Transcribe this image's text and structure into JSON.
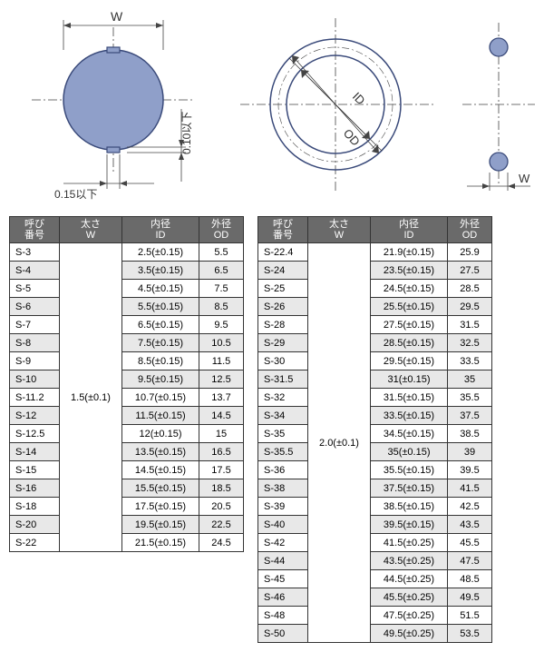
{
  "diagram": {
    "labels": {
      "W": "W",
      "W2": "W",
      "ID": "ID",
      "OD": "OD",
      "tol1": "0.15以下",
      "tol2": "0.10以下"
    },
    "colors": {
      "fill": "#8f9fc9",
      "stroke": "#3a4a7a",
      "line": "#444"
    }
  },
  "headers": [
    "呼び\n番号",
    "太さ\nW",
    "内径\nID",
    "外径\nOD"
  ],
  "table1": {
    "thickness": "1.5(±0.1)",
    "rows": [
      [
        "S-3",
        "2.5(±0.15)",
        "5.5"
      ],
      [
        "S-4",
        "3.5(±0.15)",
        "6.5"
      ],
      [
        "S-5",
        "4.5(±0.15)",
        "7.5"
      ],
      [
        "S-6",
        "5.5(±0.15)",
        "8.5"
      ],
      [
        "S-7",
        "6.5(±0.15)",
        "9.5"
      ],
      [
        "S-8",
        "7.5(±0.15)",
        "10.5"
      ],
      [
        "S-9",
        "8.5(±0.15)",
        "11.5"
      ],
      [
        "S-10",
        "9.5(±0.15)",
        "12.5"
      ],
      [
        "S-11.2",
        "10.7(±0.15)",
        "13.7"
      ],
      [
        "S-12",
        "11.5(±0.15)",
        "14.5"
      ],
      [
        "S-12.5",
        "12(±0.15)",
        "15"
      ],
      [
        "S-14",
        "13.5(±0.15)",
        "16.5"
      ],
      [
        "S-15",
        "14.5(±0.15)",
        "17.5"
      ],
      [
        "S-16",
        "15.5(±0.15)",
        "18.5"
      ],
      [
        "S-18",
        "17.5(±0.15)",
        "20.5"
      ],
      [
        "S-20",
        "19.5(±0.15)",
        "22.5"
      ],
      [
        "S-22",
        "21.5(±0.15)",
        "24.5"
      ]
    ]
  },
  "table2": {
    "thickness": "2.0(±0.1)",
    "rows": [
      [
        "S-22.4",
        "21.9(±0.15)",
        "25.9"
      ],
      [
        "S-24",
        "23.5(±0.15)",
        "27.5"
      ],
      [
        "S-25",
        "24.5(±0.15)",
        "28.5"
      ],
      [
        "S-26",
        "25.5(±0.15)",
        "29.5"
      ],
      [
        "S-28",
        "27.5(±0.15)",
        "31.5"
      ],
      [
        "S-29",
        "28.5(±0.15)",
        "32.5"
      ],
      [
        "S-30",
        "29.5(±0.15)",
        "33.5"
      ],
      [
        "S-31.5",
        "31(±0.15)",
        "35"
      ],
      [
        "S-32",
        "31.5(±0.15)",
        "35.5"
      ],
      [
        "S-34",
        "33.5(±0.15)",
        "37.5"
      ],
      [
        "S-35",
        "34.5(±0.15)",
        "38.5"
      ],
      [
        "S-35.5",
        "35(±0.15)",
        "39"
      ],
      [
        "S-36",
        "35.5(±0.15)",
        "39.5"
      ],
      [
        "S-38",
        "37.5(±0.15)",
        "41.5"
      ],
      [
        "S-39",
        "38.5(±0.15)",
        "42.5"
      ],
      [
        "S-40",
        "39.5(±0.15)",
        "43.5"
      ],
      [
        "S-42",
        "41.5(±0.25)",
        "45.5"
      ],
      [
        "S-44",
        "43.5(±0.25)",
        "47.5"
      ],
      [
        "S-45",
        "44.5(±0.25)",
        "48.5"
      ],
      [
        "S-46",
        "45.5(±0.25)",
        "49.5"
      ],
      [
        "S-48",
        "47.5(±0.25)",
        "51.5"
      ],
      [
        "S-50",
        "49.5(±0.25)",
        "53.5"
      ]
    ]
  }
}
